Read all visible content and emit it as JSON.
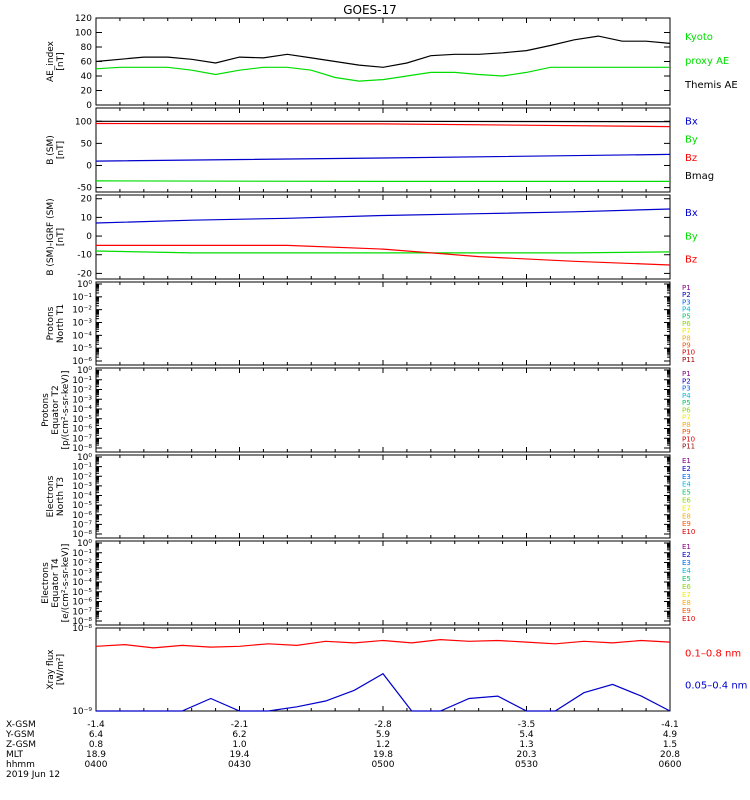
{
  "title": "GOES-17",
  "colors": {
    "black": "#000000",
    "red": "#ff0000",
    "green": "#00dd00",
    "blue": "#0000cc",
    "ch": [
      "#000000",
      "#880088",
      "#0000cc",
      "#0066ff",
      "#00bbdd",
      "#00cc66",
      "#88dd00",
      "#eeee00",
      "#ffaa00",
      "#ff5500",
      "#dd0000",
      "#990000"
    ]
  },
  "time_axis": {
    "xrange": [
      "0400",
      "0600"
    ],
    "rows": [
      {
        "label": "X-GSM",
        "values": [
          "-1.4",
          "-2.1",
          "-2.8",
          "-3.5",
          "-4.1"
        ]
      },
      {
        "label": "Y-GSM",
        "values": [
          "6.4",
          "6.2",
          "5.9",
          "5.4",
          "4.9"
        ]
      },
      {
        "label": "Z-GSM",
        "values": [
          "0.8",
          "1.0",
          "1.2",
          "1.3",
          "1.5"
        ]
      },
      {
        "label": "MLT",
        "values": [
          "18.9",
          "19.4",
          "19.8",
          "20.3",
          "20.8"
        ]
      },
      {
        "label": "hhmm",
        "values": [
          "0400",
          "0430",
          "0500",
          "0530",
          "0600"
        ]
      }
    ],
    "date": "2019 Jun 12"
  },
  "chart_data": [
    {
      "type": "line",
      "ylabel": [
        "AE_index",
        "[nT]"
      ],
      "ylim": [
        0,
        120
      ],
      "yticks": [
        0,
        20,
        40,
        60,
        80,
        100,
        120
      ],
      "x": [
        0,
        5,
        10,
        15,
        20,
        25,
        30,
        35,
        40,
        45,
        50,
        55,
        60,
        65,
        70,
        75,
        80,
        85,
        90,
        95,
        100,
        105,
        110,
        115,
        120
      ],
      "series": [
        {
          "name": "Kyoto proxy AE",
          "color": "green",
          "values": [
            50,
            52,
            52,
            52,
            48,
            42,
            48,
            52,
            52,
            48,
            38,
            33,
            35,
            40,
            45,
            45,
            42,
            40,
            45,
            52,
            52,
            52,
            52,
            52,
            52
          ]
        },
        {
          "name": "Themis AE",
          "color": "black",
          "values": [
            60,
            63,
            66,
            66,
            63,
            58,
            66,
            65,
            70,
            65,
            60,
            55,
            52,
            58,
            68,
            70,
            70,
            72,
            75,
            82,
            90,
            95,
            88,
            88,
            85
          ]
        }
      ],
      "legend": [
        {
          "text": "Kyoto",
          "color": "green"
        },
        {
          "text": "proxy AE",
          "color": "green"
        },
        {
          "text": "Themis AE",
          "color": "black"
        }
      ]
    },
    {
      "type": "line",
      "ylabel": [
        "B (SM)",
        "[nT]"
      ],
      "ylim": [
        -60,
        130
      ],
      "yticks": [
        -50,
        0,
        50,
        100
      ],
      "x": [
        0,
        60,
        120
      ],
      "series": [
        {
          "name": "Bx",
          "color": "blue",
          "values": [
            10,
            17,
            25
          ]
        },
        {
          "name": "By",
          "color": "green",
          "values": [
            -35,
            -36,
            -36
          ]
        },
        {
          "name": "Bz",
          "color": "red",
          "values": [
            95,
            94,
            88
          ]
        },
        {
          "name": "Bmag",
          "color": "black",
          "values": [
            100,
            100,
            99
          ]
        }
      ],
      "legend": [
        {
          "text": "Bx",
          "color": "blue"
        },
        {
          "text": "By",
          "color": "green"
        },
        {
          "text": "Bz",
          "color": "red"
        },
        {
          "text": "Bmag",
          "color": "black"
        }
      ]
    },
    {
      "type": "line",
      "ylabel": [
        "B (SM)-IGRF (SM)",
        "[nT]"
      ],
      "ylim": [
        -23,
        22
      ],
      "yticks": [
        -20,
        -10,
        0,
        10,
        20
      ],
      "x": [
        0,
        20,
        40,
        60,
        80,
        100,
        120
      ],
      "series": [
        {
          "name": "Bx",
          "color": "blue",
          "values": [
            7,
            8.5,
            9.5,
            11,
            12,
            13,
            14.5
          ]
        },
        {
          "name": "By",
          "color": "green",
          "values": [
            -8,
            -9,
            -9,
            -9,
            -9,
            -9,
            -8.5
          ]
        },
        {
          "name": "Bz",
          "color": "red",
          "values": [
            -5,
            -5,
            -5,
            -7,
            -11,
            -13.5,
            -15.5
          ]
        }
      ],
      "legend": [
        {
          "text": "Bx",
          "color": "blue"
        },
        {
          "text": "By",
          "color": "green"
        },
        {
          "text": "Bz",
          "color": "red"
        }
      ]
    },
    {
      "type": "line",
      "ylabel": [
        "Protons",
        "North T1"
      ],
      "ylog": true,
      "yticks": [
        "10⁰",
        "10⁻¹",
        "10⁻²",
        "10⁻³",
        "10⁻⁴",
        "10⁻⁵",
        "10⁻⁶"
      ],
      "channels": [
        "P1",
        "P2",
        "P3",
        "P4",
        "P5",
        "P6",
        "P7",
        "P8",
        "P9",
        "P10",
        "P11"
      ]
    },
    {
      "type": "line",
      "ylabel": [
        "Protons",
        "Equator T2",
        "[p/(cm²-s-sr-keV)]"
      ],
      "ylog": true,
      "yticks": [
        "10⁰",
        "10⁻¹",
        "10⁻²",
        "10⁻³",
        "10⁻⁴",
        "10⁻⁵",
        "10⁻⁶",
        "10⁻⁷",
        "10⁻⁸"
      ],
      "channels": [
        "P1",
        "P2",
        "P3",
        "P4",
        "P5",
        "P6",
        "P7",
        "P8",
        "P9",
        "P10",
        "P11"
      ]
    },
    {
      "type": "line",
      "ylabel": [
        "Electrons",
        "North T3"
      ],
      "ylog": true,
      "yticks": [
        "10⁰",
        "10⁻¹",
        "10⁻²",
        "10⁻³",
        "10⁻⁴",
        "10⁻⁵",
        "10⁻⁶",
        "10⁻⁷",
        "10⁻⁸"
      ],
      "channels": [
        "E1",
        "E2",
        "E3",
        "E4",
        "E5",
        "E6",
        "E7",
        "E8",
        "E9",
        "E10"
      ]
    },
    {
      "type": "line",
      "ylabel": [
        "Electrons",
        "Equator T4",
        "[e/(cm²-s-sr-keV)]"
      ],
      "ylog": true,
      "yticks": [
        "10⁰",
        "10⁻¹",
        "10⁻²",
        "10⁻³",
        "10⁻⁴",
        "10⁻⁵",
        "10⁻⁶",
        "10⁻⁷",
        "10⁻⁸"
      ],
      "channels": [
        "E1",
        "E2",
        "E3",
        "E4",
        "E5",
        "E6",
        "E7",
        "E8",
        "E9",
        "E10"
      ]
    },
    {
      "type": "line",
      "ylabel": [
        "Xray flux",
        "[W/m²]"
      ],
      "ylog": true,
      "ylim": [
        -9,
        -8
      ],
      "yticks": [
        "10⁻⁸",
        "10⁻⁹"
      ],
      "x": [
        0,
        6,
        12,
        18,
        24,
        30,
        36,
        42,
        48,
        54,
        60,
        66,
        72,
        78,
        84,
        90,
        96,
        102,
        108,
        114,
        120
      ],
      "series": [
        {
          "name": "0.1-0.8 nm",
          "color": "red",
          "values": [
            -8.22,
            -8.2,
            -8.24,
            -8.21,
            -8.23,
            -8.22,
            -8.19,
            -8.21,
            -8.16,
            -8.18,
            -8.15,
            -8.18,
            -8.14,
            -8.16,
            -8.15,
            -8.17,
            -8.19,
            -8.16,
            -8.18,
            -8.15,
            -8.17
          ]
        },
        {
          "name": "0.05-0.4 nm",
          "color": "blue",
          "values": [
            -9.0,
            -9.0,
            -9.0,
            -9.0,
            -8.85,
            -9.0,
            -9.0,
            -8.95,
            -8.88,
            -8.75,
            -8.55,
            -9.0,
            -9.0,
            -8.85,
            -8.82,
            -9.0,
            -9.0,
            -8.78,
            -8.68,
            -8.82,
            -9.0
          ]
        }
      ],
      "legend": [
        {
          "text": "0.1–0.8 nm",
          "color": "red"
        },
        {
          "text": "0.05–0.4 nm",
          "color": "blue"
        }
      ]
    }
  ]
}
